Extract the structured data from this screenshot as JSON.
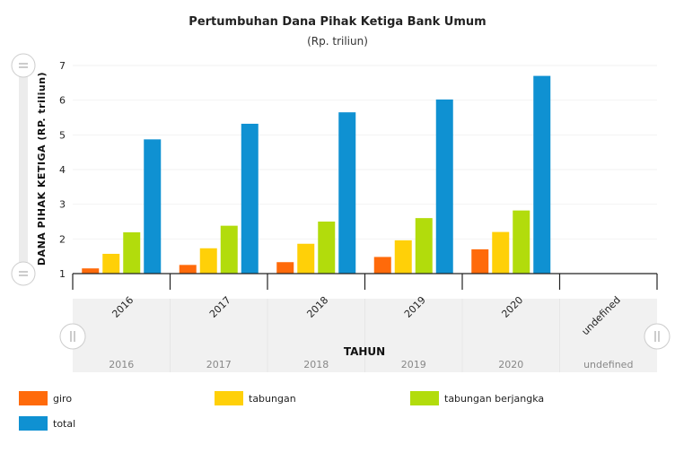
{
  "chart_data": {
    "type": "bar",
    "title": "Pertumbuhan Dana Pihak Ketiga Bank Umum",
    "subtitle": "(Rp. triliun)",
    "ylabel": "DANA PIHAK KETIGA (RP. triliun)",
    "xlabel": "TAHUN",
    "categories": [
      "2016",
      "2017",
      "2018",
      "2019",
      "2020",
      "undefined"
    ],
    "ylim": [
      1,
      7
    ],
    "yticks": [
      1,
      2,
      3,
      4,
      5,
      6,
      7
    ],
    "grid": true,
    "legend_position": "bottom",
    "series": [
      {
        "name": "giro",
        "color": "#ff6a0a",
        "values": [
          1.15,
          1.25,
          1.33,
          1.48,
          1.7,
          null
        ]
      },
      {
        "name": "tabungan",
        "color": "#ffd008",
        "values": [
          1.57,
          1.73,
          1.86,
          1.96,
          2.2,
          null
        ]
      },
      {
        "name": "tabungan berjangka",
        "color": "#b2dc0c",
        "values": [
          2.19,
          2.38,
          2.5,
          2.6,
          2.82,
          null
        ]
      },
      {
        "name": "total",
        "color": "#0f91d2",
        "values": [
          4.87,
          5.32,
          5.65,
          6.02,
          6.7,
          null
        ]
      }
    ],
    "navigator_categories": [
      "2016",
      "2017",
      "2018",
      "2019",
      "2020",
      "undefined"
    ]
  }
}
